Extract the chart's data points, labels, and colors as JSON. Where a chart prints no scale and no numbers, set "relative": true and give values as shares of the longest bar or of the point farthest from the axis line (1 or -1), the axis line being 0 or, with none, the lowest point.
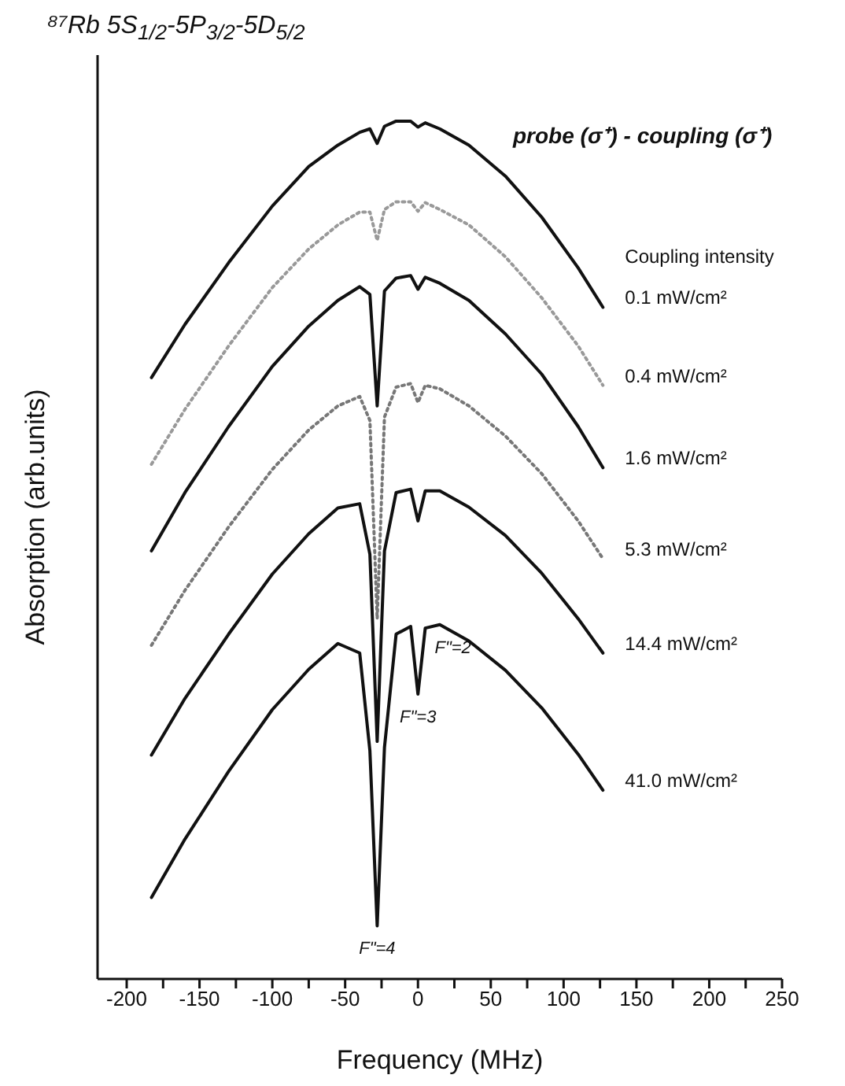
{
  "chart_data": {
    "type": "line",
    "title": "⁸⁷Rb 5S$_{1/2}$-5P$_{3/2}$-5D$_{5/2}$",
    "subtitle": "probe (σ⁺) - coupling (σ⁺)",
    "xlabel": "Frequency (MHz)",
    "ylabel": "Absorption (arb.units)",
    "legend_title": "Coupling intensity",
    "relative": true,
    "legend": false,
    "marker": "none",
    "line_style": "solid",
    "x": [
      -183,
      -160,
      -130,
      -100,
      -75,
      -55,
      -40,
      -33,
      -28,
      -23,
      -15,
      -5,
      0,
      5,
      15,
      35,
      60,
      85,
      110,
      127
    ],
    "xlim": [
      -220,
      250
    ],
    "xticks": [
      -200,
      {
        "value": -175,
        "label": null
      },
      -150,
      {
        "value": -125,
        "label": null
      },
      -100,
      {
        "value": -75,
        "label": null
      },
      -50,
      {
        "value": -25,
        "label": null
      },
      0,
      {
        "value": 25,
        "label": null
      },
      50,
      {
        "value": 75,
        "label": null
      },
      100,
      {
        "value": 125,
        "label": null
      },
      150,
      {
        "value": 175,
        "label": null
      },
      200,
      {
        "value": 225,
        "label": null
      },
      250
    ],
    "series": [
      {
        "name": "0.1 mW/cm²",
        "color": "#111111",
        "values": [
          0.701,
          0.763,
          0.835,
          0.901,
          0.947,
          0.972,
          0.987,
          0.991,
          0.974,
          0.994,
          1.0,
          1.0,
          0.993,
          0.998,
          0.991,
          0.972,
          0.936,
          0.888,
          0.829,
          0.783
        ]
      },
      {
        "name": "0.4 mW/cm²",
        "color": "#999999",
        "line_style": "dotted",
        "values": [
          0.6,
          0.664,
          0.738,
          0.806,
          0.851,
          0.879,
          0.894,
          0.894,
          0.861,
          0.897,
          0.906,
          0.906,
          0.895,
          0.905,
          0.897,
          0.879,
          0.842,
          0.794,
          0.738,
          0.692
        ]
      },
      {
        "name": "1.6 mW/cm²",
        "color": "#111111",
        "values": [
          0.499,
          0.567,
          0.644,
          0.714,
          0.761,
          0.791,
          0.807,
          0.798,
          0.668,
          0.802,
          0.817,
          0.82,
          0.804,
          0.818,
          0.811,
          0.791,
          0.752,
          0.705,
          0.644,
          0.596
        ]
      },
      {
        "name": "5.3 mW/cm²",
        "color": "#777777",
        "line_style": "dotted",
        "values": [
          0.389,
          0.453,
          0.527,
          0.594,
          0.64,
          0.668,
          0.679,
          0.651,
          0.42,
          0.655,
          0.69,
          0.694,
          0.672,
          0.692,
          0.688,
          0.668,
          0.633,
          0.589,
          0.534,
          0.49
        ]
      },
      {
        "name": "14.4 mW/cm²",
        "color": "#111111",
        "values": [
          0.261,
          0.327,
          0.402,
          0.472,
          0.519,
          0.549,
          0.554,
          0.495,
          0.277,
          0.499,
          0.567,
          0.571,
          0.534,
          0.569,
          0.569,
          0.55,
          0.517,
          0.473,
          0.42,
          0.38
        ]
      },
      {
        "name": "41.0 mW/cm²",
        "color": "#111111",
        "values": [
          0.095,
          0.163,
          0.242,
          0.314,
          0.361,
          0.391,
          0.38,
          0.266,
          0.062,
          0.27,
          0.402,
          0.411,
          0.332,
          0.409,
          0.413,
          0.394,
          0.36,
          0.316,
          0.262,
          0.22
        ]
      }
    ],
    "annotations": [
      {
        "text": "F\"=4",
        "x": -28,
        "y": 0.062
      },
      {
        "text": "F\"=3",
        "x": 0,
        "y": 0.332
      },
      {
        "text": "F\"=2",
        "x": 5,
        "y": 0.409
      }
    ]
  }
}
